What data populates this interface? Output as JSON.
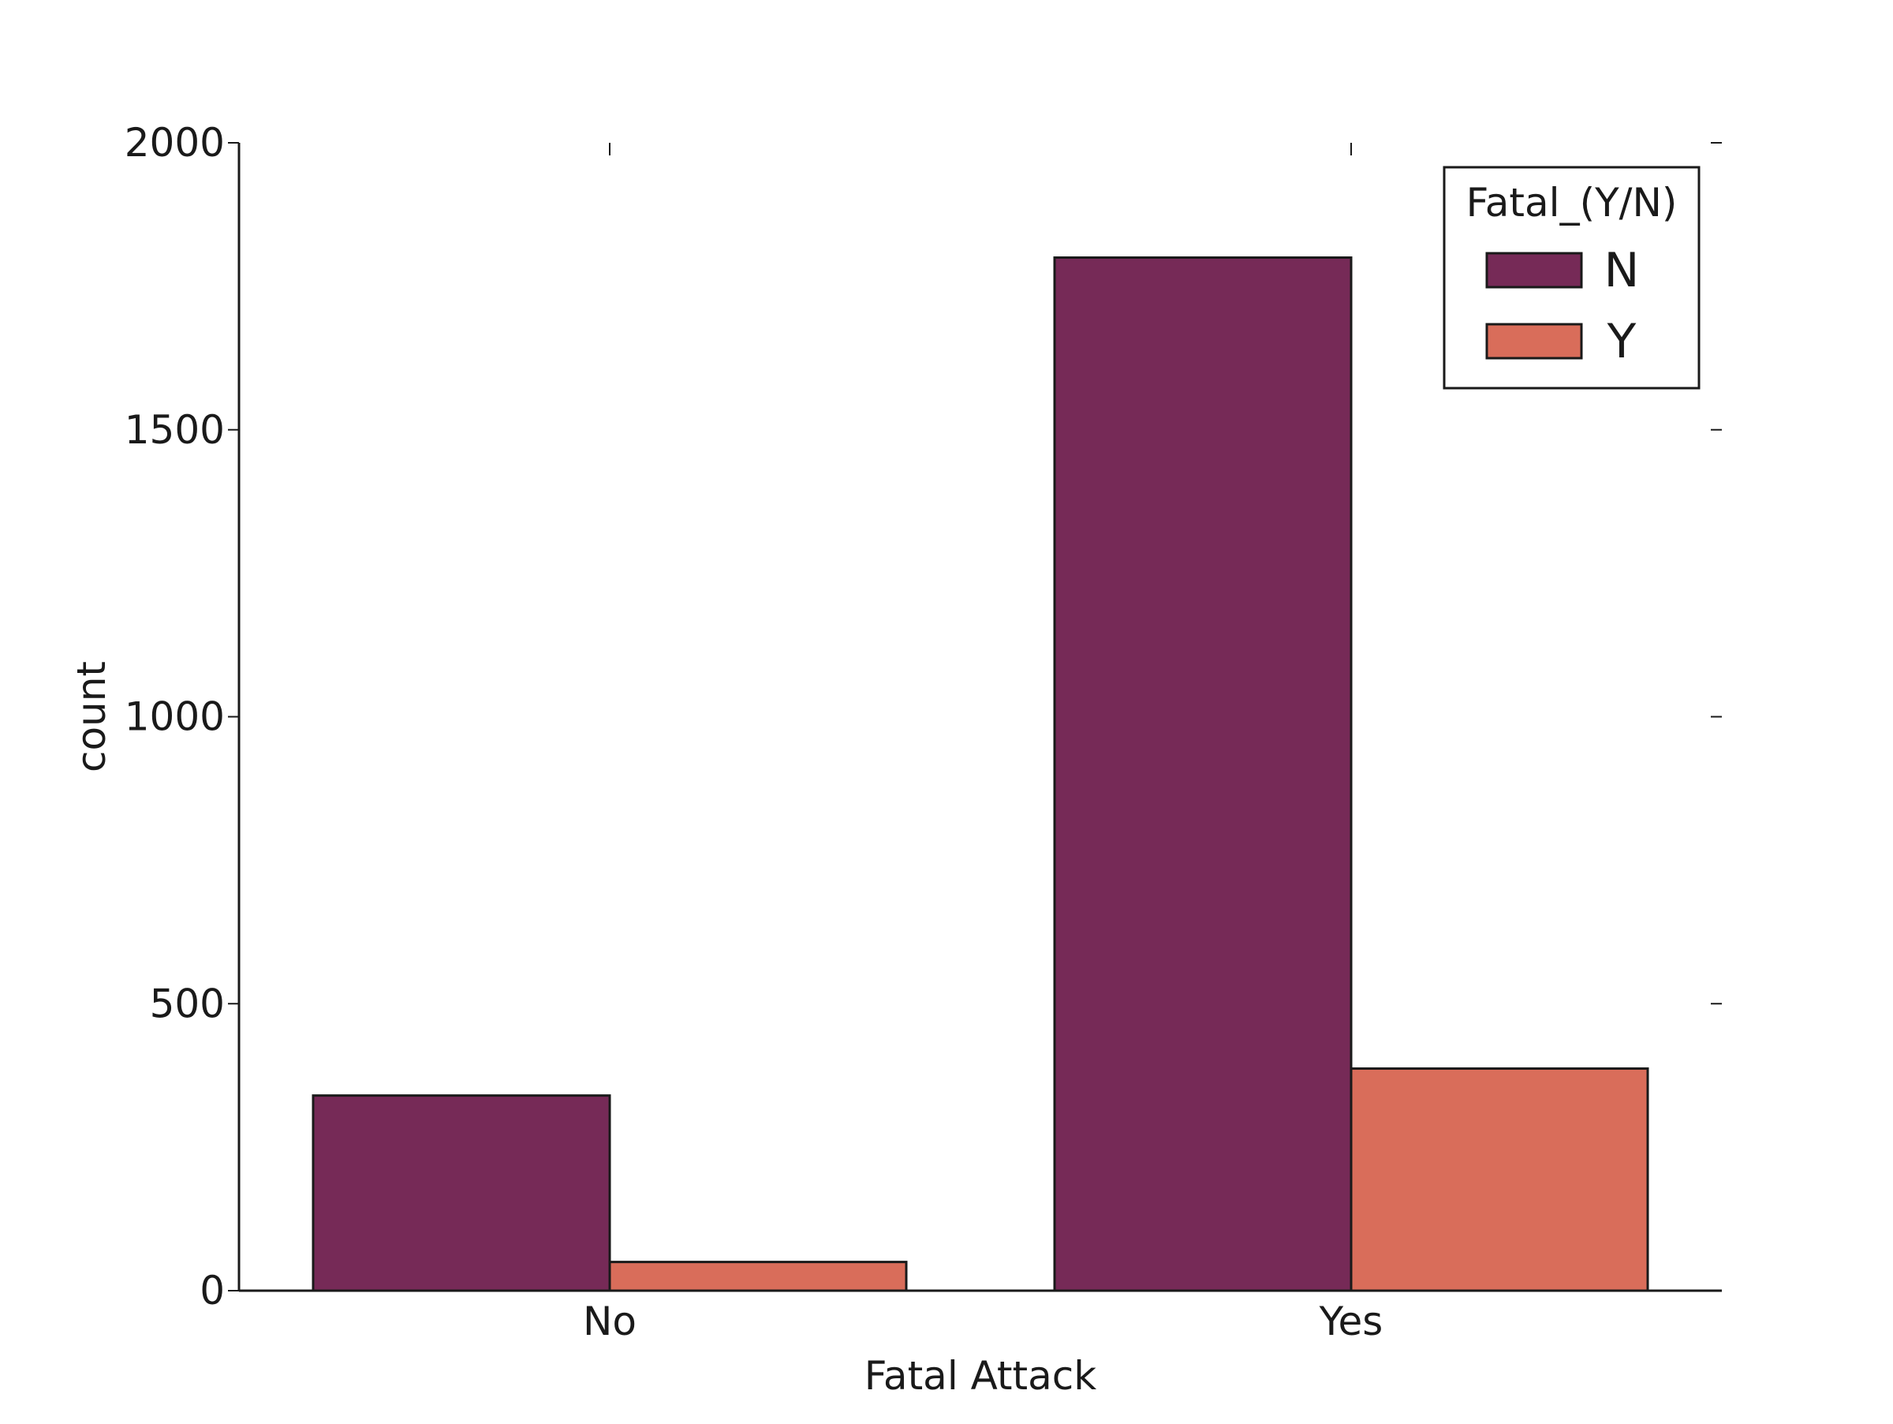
{
  "chart_data": {
    "type": "bar",
    "title": "",
    "xlabel": "Fatal Attack",
    "ylabel": "count",
    "categories": [
      "No",
      "Yes"
    ],
    "ylim": [
      0,
      2000
    ],
    "yticks": [
      0,
      500,
      1000,
      1500,
      2000
    ],
    "grid": false,
    "legend": {
      "title": "Fatal_(Y/N)",
      "placement": "top-right"
    },
    "series": [
      {
        "name": "N",
        "color": "#762a57",
        "values": [
          340,
          1800
        ]
      },
      {
        "name": "Y",
        "color": "#d96d5a",
        "values": [
          50,
          387
        ]
      }
    ]
  }
}
